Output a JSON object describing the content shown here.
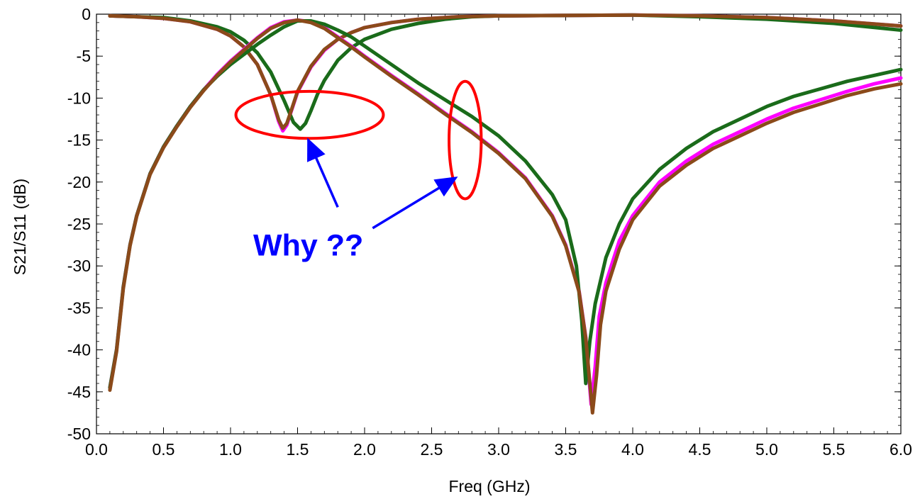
{
  "chart_data": {
    "type": "line",
    "xlabel": "Freq (GHz)",
    "ylabel": "S21/S11 (dB)",
    "xlim": [
      0.0,
      6.0
    ],
    "ylim": [
      -50,
      0
    ],
    "x_ticks": [
      "0.0",
      "0.5",
      "1.0",
      "1.5",
      "2.0",
      "2.5",
      "3.0",
      "3.5",
      "4.0",
      "4.5",
      "5.0",
      "5.5",
      "6.0"
    ],
    "y_ticks": [
      "0",
      "-5",
      "-10",
      "-15",
      "-20",
      "-25",
      "-30",
      "-35",
      "-40",
      "-45",
      "-50"
    ],
    "grid": false,
    "series": [
      {
        "color": "#ff00ff",
        "points": [
          [
            0.1,
            -0.2
          ],
          [
            0.3,
            -0.3
          ],
          [
            0.5,
            -0.5
          ],
          [
            0.7,
            -0.9
          ],
          [
            0.9,
            -1.8
          ],
          [
            1.0,
            -2.6
          ],
          [
            1.1,
            -3.9
          ],
          [
            1.2,
            -6.0
          ],
          [
            1.3,
            -9.6
          ],
          [
            1.36,
            -12.8
          ],
          [
            1.39,
            -13.9
          ],
          [
            1.42,
            -13.2
          ],
          [
            1.45,
            -11.7
          ],
          [
            1.5,
            -9.3
          ],
          [
            1.6,
            -6.3
          ],
          [
            1.7,
            -4.3
          ],
          [
            1.8,
            -3.0
          ],
          [
            1.9,
            -2.2
          ],
          [
            2.0,
            -1.6
          ],
          [
            2.2,
            -1.0
          ],
          [
            2.4,
            -0.6
          ],
          [
            2.7,
            -0.3
          ],
          [
            3.0,
            -0.2
          ],
          [
            4.0,
            -0.1
          ],
          [
            4.5,
            -0.2
          ],
          [
            5.0,
            -0.4
          ],
          [
            5.5,
            -0.8
          ],
          [
            6.0,
            -1.4
          ]
        ]
      },
      {
        "color": "#1a6b1a",
        "points": [
          [
            0.1,
            -0.2
          ],
          [
            0.3,
            -0.3
          ],
          [
            0.5,
            -0.4
          ],
          [
            0.7,
            -0.8
          ],
          [
            0.9,
            -1.5
          ],
          [
            1.0,
            -2.1
          ],
          [
            1.1,
            -3.1
          ],
          [
            1.2,
            -4.6
          ],
          [
            1.3,
            -6.9
          ],
          [
            1.4,
            -10.3
          ],
          [
            1.47,
            -12.9
          ],
          [
            1.52,
            -13.7
          ],
          [
            1.56,
            -13.0
          ],
          [
            1.6,
            -11.5
          ],
          [
            1.65,
            -9.5
          ],
          [
            1.7,
            -7.9
          ],
          [
            1.8,
            -5.5
          ],
          [
            1.9,
            -4.0
          ],
          [
            2.0,
            -3.0
          ],
          [
            2.2,
            -1.8
          ],
          [
            2.4,
            -1.1
          ],
          [
            2.6,
            -0.6
          ],
          [
            2.8,
            -0.3
          ],
          [
            3.0,
            -0.2
          ],
          [
            4.0,
            -0.1
          ],
          [
            4.5,
            -0.3
          ],
          [
            5.0,
            -0.6
          ],
          [
            5.5,
            -1.1
          ],
          [
            6.0,
            -1.9
          ]
        ]
      },
      {
        "color": "#8b4a1a",
        "points": [
          [
            0.1,
            -0.2
          ],
          [
            0.3,
            -0.3
          ],
          [
            0.5,
            -0.5
          ],
          [
            0.7,
            -0.9
          ],
          [
            0.9,
            -1.8
          ],
          [
            1.0,
            -2.6
          ],
          [
            1.1,
            -3.9
          ],
          [
            1.2,
            -6.0
          ],
          [
            1.3,
            -9.6
          ],
          [
            1.36,
            -12.6
          ],
          [
            1.39,
            -13.6
          ],
          [
            1.42,
            -13.0
          ],
          [
            1.45,
            -11.6
          ],
          [
            1.5,
            -9.2
          ],
          [
            1.6,
            -6.2
          ],
          [
            1.7,
            -4.2
          ],
          [
            1.8,
            -3.0
          ],
          [
            1.9,
            -2.2
          ],
          [
            2.0,
            -1.6
          ],
          [
            2.2,
            -1.0
          ],
          [
            2.4,
            -0.6
          ],
          [
            2.7,
            -0.3
          ],
          [
            3.0,
            -0.2
          ],
          [
            4.0,
            -0.1
          ],
          [
            4.5,
            -0.2
          ],
          [
            5.0,
            -0.4
          ],
          [
            5.5,
            -0.8
          ],
          [
            6.0,
            -1.4
          ]
        ]
      },
      {
        "color": "#ff00ff",
        "points": [
          [
            0.1,
            -44.5
          ],
          [
            0.15,
            -40.0
          ],
          [
            0.2,
            -32.5
          ],
          [
            0.25,
            -27.5
          ],
          [
            0.3,
            -24.0
          ],
          [
            0.4,
            -19.0
          ],
          [
            0.5,
            -15.8
          ],
          [
            0.6,
            -13.3
          ],
          [
            0.7,
            -11.0
          ],
          [
            0.8,
            -9.0
          ],
          [
            0.9,
            -7.2
          ],
          [
            1.0,
            -5.6
          ],
          [
            1.1,
            -4.2
          ],
          [
            1.2,
            -2.8
          ],
          [
            1.3,
            -1.6
          ],
          [
            1.4,
            -0.9
          ],
          [
            1.5,
            -0.7
          ],
          [
            1.6,
            -0.9
          ],
          [
            1.7,
            -1.6
          ],
          [
            1.8,
            -2.7
          ],
          [
            1.9,
            -3.8
          ],
          [
            2.0,
            -5.0
          ],
          [
            2.2,
            -7.3
          ],
          [
            2.4,
            -9.5
          ],
          [
            2.6,
            -11.8
          ],
          [
            2.8,
            -14.0
          ],
          [
            3.0,
            -16.5
          ],
          [
            3.2,
            -19.5
          ],
          [
            3.4,
            -24.0
          ],
          [
            3.5,
            -27.5
          ],
          [
            3.6,
            -33.0
          ],
          [
            3.65,
            -38.5
          ],
          [
            3.69,
            -46.5
          ],
          [
            3.72,
            -42.0
          ],
          [
            3.75,
            -36.0
          ],
          [
            3.8,
            -32.0
          ],
          [
            3.9,
            -27.0
          ],
          [
            4.0,
            -24.0
          ],
          [
            4.2,
            -20.0
          ],
          [
            4.4,
            -17.5
          ],
          [
            4.6,
            -15.5
          ],
          [
            4.8,
            -14.0
          ],
          [
            5.0,
            -12.5
          ],
          [
            5.2,
            -11.2
          ],
          [
            5.4,
            -10.2
          ],
          [
            5.6,
            -9.2
          ],
          [
            5.8,
            -8.3
          ],
          [
            6.0,
            -7.6
          ]
        ]
      },
      {
        "color": "#1a6b1a",
        "points": [
          [
            0.1,
            -44.5
          ],
          [
            0.15,
            -40.0
          ],
          [
            0.2,
            -32.5
          ],
          [
            0.25,
            -27.5
          ],
          [
            0.3,
            -24.0
          ],
          [
            0.4,
            -19.0
          ],
          [
            0.5,
            -15.8
          ],
          [
            0.6,
            -13.3
          ],
          [
            0.7,
            -11.0
          ],
          [
            0.8,
            -9.0
          ],
          [
            0.9,
            -7.4
          ],
          [
            1.0,
            -6.0
          ],
          [
            1.1,
            -4.8
          ],
          [
            1.2,
            -3.6
          ],
          [
            1.3,
            -2.5
          ],
          [
            1.4,
            -1.5
          ],
          [
            1.5,
            -0.8
          ],
          [
            1.6,
            -0.8
          ],
          [
            1.7,
            -1.2
          ],
          [
            1.8,
            -1.9
          ],
          [
            1.9,
            -2.7
          ],
          [
            2.0,
            -3.8
          ],
          [
            2.2,
            -6.0
          ],
          [
            2.4,
            -8.2
          ],
          [
            2.6,
            -10.2
          ],
          [
            2.8,
            -12.2
          ],
          [
            3.0,
            -14.5
          ],
          [
            3.2,
            -17.5
          ],
          [
            3.4,
            -21.5
          ],
          [
            3.5,
            -24.5
          ],
          [
            3.58,
            -30.0
          ],
          [
            3.62,
            -36.5
          ],
          [
            3.65,
            -44.0
          ],
          [
            3.68,
            -39.0
          ],
          [
            3.72,
            -34.5
          ],
          [
            3.8,
            -29.0
          ],
          [
            3.9,
            -25.0
          ],
          [
            4.0,
            -22.0
          ],
          [
            4.2,
            -18.5
          ],
          [
            4.4,
            -16.0
          ],
          [
            4.6,
            -14.0
          ],
          [
            4.8,
            -12.5
          ],
          [
            5.0,
            -11.0
          ],
          [
            5.2,
            -9.8
          ],
          [
            5.4,
            -8.9
          ],
          [
            5.6,
            -8.0
          ],
          [
            5.8,
            -7.3
          ],
          [
            6.0,
            -6.6
          ]
        ]
      },
      {
        "color": "#8b4a1a",
        "points": [
          [
            0.1,
            -44.8
          ],
          [
            0.15,
            -40.2
          ],
          [
            0.2,
            -32.7
          ],
          [
            0.25,
            -27.6
          ],
          [
            0.3,
            -24.1
          ],
          [
            0.4,
            -19.1
          ],
          [
            0.5,
            -15.9
          ],
          [
            0.6,
            -13.4
          ],
          [
            0.7,
            -11.1
          ],
          [
            0.8,
            -9.1
          ],
          [
            0.9,
            -7.3
          ],
          [
            1.0,
            -5.7
          ],
          [
            1.1,
            -4.3
          ],
          [
            1.2,
            -2.9
          ],
          [
            1.3,
            -1.7
          ],
          [
            1.4,
            -1.0
          ],
          [
            1.5,
            -0.7
          ],
          [
            1.6,
            -1.0
          ],
          [
            1.7,
            -1.7
          ],
          [
            1.8,
            -2.8
          ],
          [
            1.9,
            -3.9
          ],
          [
            2.0,
            -5.1
          ],
          [
            2.2,
            -7.4
          ],
          [
            2.4,
            -9.6
          ],
          [
            2.6,
            -11.9
          ],
          [
            2.8,
            -14.1
          ],
          [
            3.0,
            -16.6
          ],
          [
            3.2,
            -19.6
          ],
          [
            3.4,
            -24.1
          ],
          [
            3.5,
            -27.6
          ],
          [
            3.6,
            -33.1
          ],
          [
            3.65,
            -38.6
          ],
          [
            3.7,
            -47.5
          ],
          [
            3.73,
            -43.0
          ],
          [
            3.76,
            -37.0
          ],
          [
            3.8,
            -33.0
          ],
          [
            3.9,
            -28.0
          ],
          [
            4.0,
            -24.5
          ],
          [
            4.2,
            -20.5
          ],
          [
            4.4,
            -18.0
          ],
          [
            4.6,
            -16.0
          ],
          [
            4.8,
            -14.5
          ],
          [
            5.0,
            -13.0
          ],
          [
            5.2,
            -11.7
          ],
          [
            5.4,
            -10.7
          ],
          [
            5.6,
            -9.7
          ],
          [
            5.8,
            -8.9
          ],
          [
            6.0,
            -8.3
          ]
        ]
      }
    ],
    "annotations": {
      "text": "Why ??",
      "ellipses": [
        {
          "cx": 1.59,
          "cy": -12.0,
          "rx": 0.55,
          "ry": 2.8,
          "color": "#ff0000"
        },
        {
          "cx": 2.75,
          "cy": -15.0,
          "rx": 0.12,
          "ry": 7.0,
          "color": "#ff0000"
        }
      ],
      "arrows": [
        {
          "from": [
            1.8,
            -23.0
          ],
          "to": [
            1.58,
            -15.0
          ],
          "color": "#0000ff"
        },
        {
          "from": [
            2.06,
            -25.5
          ],
          "to": [
            2.68,
            -19.5
          ],
          "color": "#0000ff"
        }
      ],
      "text_anchor": [
        1.58,
        -27.5
      ]
    }
  }
}
